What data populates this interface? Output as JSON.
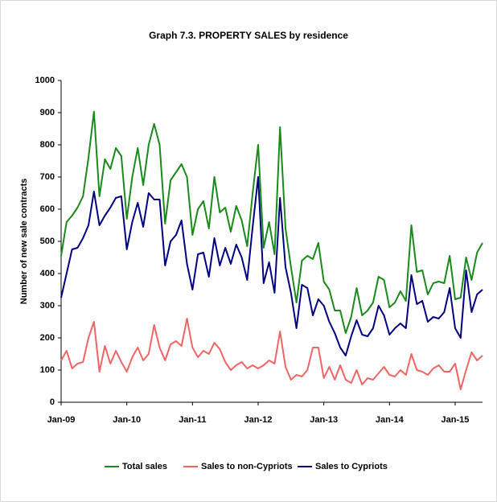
{
  "chart_data": {
    "type": "line",
    "title": "Graph 7.3. PROPERTY SALES by residence",
    "y_label": "Number of new sale contracts",
    "categories": [
      "Jan-09",
      null,
      null,
      null,
      null,
      null,
      null,
      null,
      null,
      null,
      null,
      null,
      "Jan-10",
      null,
      null,
      null,
      null,
      null,
      null,
      null,
      null,
      null,
      null,
      null,
      "Jan-11",
      null,
      null,
      null,
      null,
      null,
      null,
      null,
      null,
      null,
      null,
      null,
      "Jan-12",
      null,
      null,
      null,
      null,
      null,
      null,
      null,
      null,
      null,
      null,
      null,
      "Jan-13",
      null,
      null,
      null,
      null,
      null,
      null,
      null,
      null,
      null,
      null,
      null,
      "Jan-14",
      null,
      null,
      null,
      null,
      null,
      null,
      null,
      null,
      null,
      null,
      null,
      "Jan-15",
      null,
      null,
      null,
      null,
      null
    ],
    "series": [
      {
        "name": "Total sales",
        "color": "#1a8a1a",
        "values": [
          455,
          560,
          580,
          605,
          640,
          760,
          903,
          640,
          755,
          725,
          790,
          765,
          570,
          700,
          790,
          675,
          800,
          865,
          800,
          555,
          690,
          715,
          740,
          700,
          520,
          600,
          625,
          540,
          700,
          590,
          605,
          530,
          610,
          565,
          485,
          650,
          800,
          480,
          560,
          460,
          855,
          540,
          420,
          310,
          440,
          455,
          445,
          495,
          375,
          350,
          285,
          285,
          215,
          265,
          355,
          270,
          285,
          310,
          390,
          380,
          295,
          310,
          345,
          315,
          550,
          405,
          410,
          335,
          370,
          375,
          370,
          455,
          320,
          325,
          450,
          380,
          465,
          495
        ]
      },
      {
        "name": "Sales to non-Cypriots",
        "color": "#f06464",
        "values": [
          130,
          160,
          105,
          120,
          125,
          200,
          250,
          95,
          175,
          120,
          160,
          125,
          95,
          140,
          170,
          130,
          150,
          240,
          170,
          130,
          180,
          190,
          175,
          260,
          170,
          140,
          160,
          150,
          185,
          165,
          125,
          100,
          115,
          125,
          105,
          115,
          105,
          115,
          130,
          120,
          220,
          110,
          70,
          85,
          80,
          100,
          170,
          170,
          75,
          110,
          70,
          115,
          70,
          60,
          100,
          55,
          75,
          70,
          90,
          110,
          85,
          80,
          100,
          85,
          150,
          100,
          95,
          85,
          105,
          115,
          95,
          95,
          120,
          40,
          100,
          155,
          130,
          145
        ]
      },
      {
        "name": "Sales to Cypriots",
        "color": "#000080",
        "values": [
          325,
          400,
          475,
          480,
          510,
          550,
          655,
          550,
          580,
          605,
          635,
          640,
          475,
          560,
          620,
          545,
          650,
          630,
          630,
          425,
          500,
          520,
          565,
          430,
          350,
          460,
          465,
          390,
          510,
          425,
          480,
          430,
          490,
          450,
          380,
          545,
          700,
          370,
          435,
          340,
          635,
          420,
          340,
          230,
          365,
          355,
          270,
          320,
          300,
          250,
          215,
          170,
          145,
          205,
          255,
          210,
          205,
          230,
          300,
          270,
          210,
          230,
          245,
          230,
          395,
          305,
          315,
          250,
          265,
          260,
          280,
          355,
          230,
          200,
          410,
          280,
          335,
          350
        ]
      }
    ],
    "ylim": [
      0,
      1000
    ],
    "yticks": [
      0,
      100,
      200,
      300,
      400,
      500,
      600,
      700,
      800,
      900,
      1000
    ],
    "grid": false,
    "legend": "bottom"
  }
}
